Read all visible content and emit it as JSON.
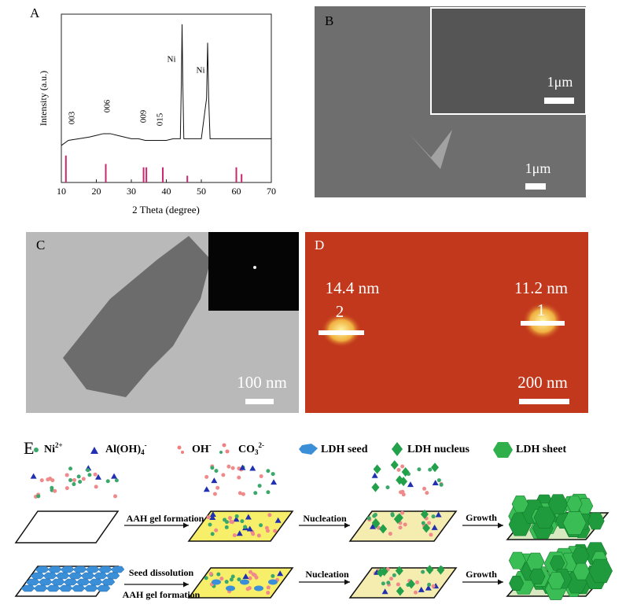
{
  "chart_data": {
    "type": "line",
    "panel_label": "A",
    "x_label": "2 Theta (degree)",
    "y_label": "Intensity (a.u.)",
    "xlim": [
      10,
      70
    ],
    "xticks": [
      10,
      20,
      30,
      40,
      50,
      60,
      70
    ],
    "ylim": [
      0,
      100
    ],
    "x": [
      10,
      12,
      15,
      18,
      20,
      22,
      24,
      26,
      28,
      30,
      32,
      34,
      36,
      38,
      40,
      42,
      44,
      44.3,
      44.5,
      44.7,
      45,
      47,
      50,
      51.5,
      51.8,
      52.1,
      52.5,
      55,
      60,
      65,
      70
    ],
    "values": [
      22,
      25,
      26,
      27,
      28,
      29,
      29,
      28,
      27,
      26,
      26,
      25,
      25,
      25,
      25,
      26,
      26,
      60,
      94,
      60,
      26,
      26,
      26,
      50,
      83,
      50,
      26,
      26,
      26,
      26,
      26
    ],
    "color": "#111111",
    "reference": {
      "x": [
        11.3,
        22.7,
        33.5,
        34.3,
        39,
        46,
        60,
        61.5
      ],
      "values": [
        16,
        11,
        9,
        9,
        9,
        4,
        9,
        5
      ],
      "color": "#c8286e"
    },
    "annotations": [
      "003",
      "006",
      "009",
      "015",
      "Ni",
      "Ni"
    ]
  },
  "panel_b": {
    "label": "B",
    "scale_labels": [
      "1μm",
      "1μm"
    ]
  },
  "panel_c": {
    "label": "C",
    "scale_label": "100 nm"
  },
  "panel_d": {
    "label": "D",
    "heights": [
      "14.4 nm",
      "11.2 nm"
    ],
    "markers": [
      "2",
      "1"
    ],
    "scale_label": "200 nm"
  },
  "panel_e": {
    "label": "E",
    "legend": [
      {
        "base": "Ni",
        "sup": "2+"
      },
      {
        "base": "Al(OH)",
        "sub": "4",
        "sup": "-"
      },
      {
        "base": "OH",
        "sup": "-"
      },
      {
        "base": "CO",
        "sub": "3",
        "sup": "2-"
      },
      {
        "base": "LDH seed"
      },
      {
        "base": "LDH nucleus"
      },
      {
        "base": "LDH sheet"
      }
    ],
    "row_1": [
      "AAH gel formation",
      "Nucleation",
      "Growth"
    ],
    "row_2": [
      "Seed dissolution",
      "AAH gel formation",
      "Nucleation",
      "Growth"
    ]
  }
}
